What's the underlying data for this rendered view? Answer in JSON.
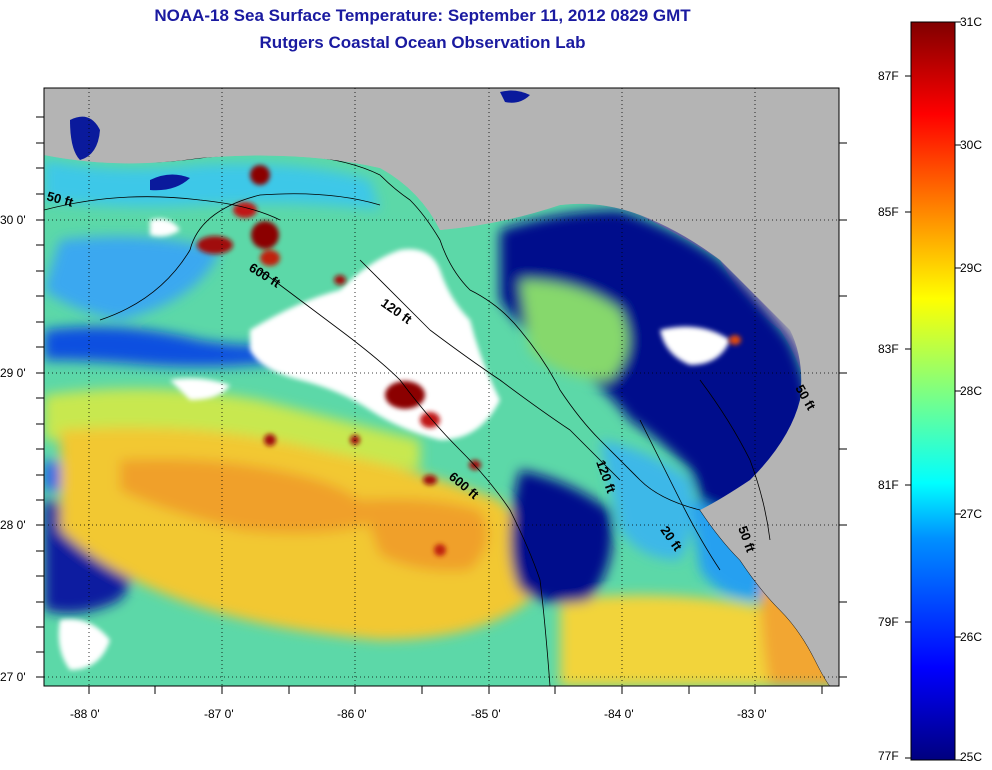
{
  "header": {
    "title": "NOAA-18 Sea Surface Temperature:  September 11, 2012 0829 GMT",
    "subtitle": "Rutgers Coastal Ocean Observation Lab"
  },
  "map": {
    "lon_ticks": [
      "-88 0'",
      "-87 0'",
      "-86 0'",
      "-85 0'",
      "-84 0'",
      "-83 0'"
    ],
    "lat_ticks": [
      "30 0'",
      "29 0'",
      "28 0'",
      "27 0'"
    ],
    "contour_labels": [
      "50 ft",
      "600 ft",
      "120 ft",
      "600 ft",
      "120 ft",
      "20 ft",
      "50 ft",
      "50 ft"
    ],
    "colors": {
      "land": "#b4b4b4",
      "cloud": "#ffffff",
      "cold": "#000a8c",
      "cool": "#2c80ff",
      "mid": "#3ce0d8",
      "green": "#8ee06a",
      "warm": "#f2e63a",
      "orange": "#f2a22c",
      "hot": "#8b0000"
    }
  },
  "colorbar": {
    "celsius": [
      "31C",
      "30C",
      "29C",
      "28C",
      "27C",
      "26C",
      "25C"
    ],
    "fahrenheit": [
      "87F",
      "85F",
      "83F",
      "81F",
      "79F",
      "77F"
    ],
    "range_c": [
      25,
      31
    ]
  }
}
